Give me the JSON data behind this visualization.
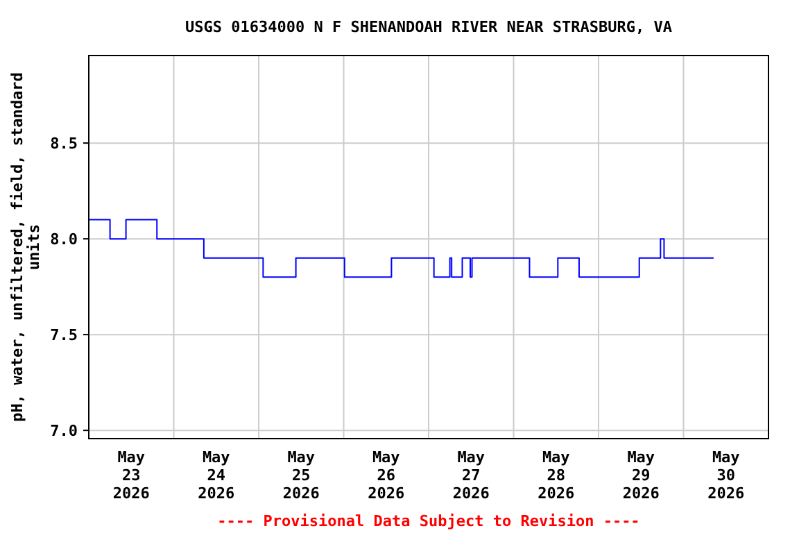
{
  "chart_data": {
    "type": "step",
    "title": "USGS 01634000 N F SHENANDOAH RIVER NEAR STRASBURG, VA",
    "ylabel": "pH, water, unfiltered, field, standard units",
    "x": [
      "2026-05-23T00:00",
      "2026-05-23T06:00",
      "2026-05-23T10:30",
      "2026-05-23T19:15",
      "2026-05-24T08:30",
      "2026-05-25T01:15",
      "2026-05-25T10:30",
      "2026-05-26T00:15",
      "2026-05-26T13:30",
      "2026-05-27T01:30",
      "2026-05-27T06:00",
      "2026-05-27T06:30",
      "2026-05-27T09:30",
      "2026-05-27T11:45",
      "2026-05-27T12:15",
      "2026-05-28T04:30",
      "2026-05-28T12:30",
      "2026-05-28T18:30",
      "2026-05-29T11:30",
      "2026-05-29T17:30",
      "2026-05-29T18:30",
      "2026-05-30T08:30"
    ],
    "series": [
      {
        "color": "#0000ff",
        "values": [
          8.1,
          8.0,
          8.1,
          8.0,
          7.9,
          7.8,
          7.9,
          7.8,
          7.9,
          7.8,
          7.9,
          7.8,
          7.9,
          7.8,
          7.9,
          7.8,
          7.9,
          7.8,
          7.9,
          8.0,
          7.9,
          7.9
        ]
      }
    ],
    "xlim": [
      "2026-05-23T00:00",
      "2026-05-31T00:00"
    ],
    "xticks": [
      {
        "value": "2026-05-23T00:00",
        "label": null
      },
      {
        "value": "2026-05-23T12:00",
        "label": "May\n23\n2026"
      },
      {
        "value": "2026-05-24T00:00",
        "label": null
      },
      {
        "value": "2026-05-24T12:00",
        "label": "May\n24\n2026"
      },
      {
        "value": "2026-05-25T00:00",
        "label": null
      },
      {
        "value": "2026-05-25T12:00",
        "label": "May\n25\n2026"
      },
      {
        "value": "2026-05-26T00:00",
        "label": null
      },
      {
        "value": "2026-05-26T12:00",
        "label": "May\n26\n2026"
      },
      {
        "value": "2026-05-27T00:00",
        "label": null
      },
      {
        "value": "2026-05-27T12:00",
        "label": "May\n27\n2026"
      },
      {
        "value": "2026-05-28T00:00",
        "label": null
      },
      {
        "value": "2026-05-28T12:00",
        "label": "May\n28\n2026"
      },
      {
        "value": "2026-05-29T00:00",
        "label": null
      },
      {
        "value": "2026-05-29T12:00",
        "label": "May\n29\n2026"
      },
      {
        "value": "2026-05-30T00:00",
        "label": null
      },
      {
        "value": "2026-05-30T12:00",
        "label": "May\n30\n2026"
      },
      {
        "value": "2026-05-31T00:00",
        "label": null
      }
    ],
    "ylim": [
      6.957,
      8.957
    ],
    "yticks": [
      {
        "value": 7,
        "label": "7.0"
      },
      {
        "value": 7.5,
        "label": "7.5"
      },
      {
        "value": 8,
        "label": "8.0"
      },
      {
        "value": 8.5,
        "label": "8.5"
      }
    ],
    "grid": true,
    "annotations": [
      "---- Provisional Data Subject to Revision ----"
    ]
  }
}
